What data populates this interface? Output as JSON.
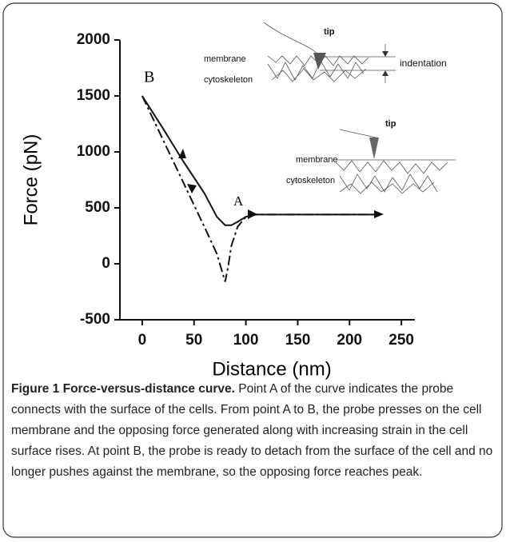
{
  "chart_data": {
    "type": "line",
    "xlabel": "Distance (nm)",
    "ylabel": "Force (pN)",
    "xlim": [
      -21.5,
      263
    ],
    "xticks": [
      0,
      50,
      100,
      150,
      200,
      250
    ],
    "ylim": [
      -500,
      2000
    ],
    "yticks": [
      -500,
      0,
      500,
      1000,
      1500,
      2000
    ],
    "series": [
      {
        "color": "#111111",
        "dashed": false,
        "x": [
          0,
          20,
          40,
          60,
          72,
          80,
          86,
          92,
          100,
          110,
          230
        ],
        "values": [
          1500,
          1210,
          910,
          630,
          420,
          345,
          345,
          375,
          420,
          440,
          440
        ]
      },
      {
        "color": "#111111",
        "dashed": true,
        "x": [
          0,
          20,
          40,
          60,
          72,
          80,
          83,
          86,
          92,
          100,
          110,
          230
        ],
        "values": [
          1500,
          1110,
          720,
          330,
          90,
          -160,
          -20,
          160,
          330,
          420,
          440,
          440
        ]
      }
    ],
    "annotations": [
      "B",
      "A",
      "tip",
      "membrane",
      "cytoskeleton",
      "indentation",
      "tip",
      "membrane",
      "cytoskeleton"
    ]
  },
  "figure_caption": {
    "title": "Figure 1 Force-versus-distance curve.",
    "text": "Point A of the curve indicates the probe connects with the surface of the cells. From point A to B, the probe presses on the cell membrane and the opposing force generated along with increasing strain in the cell surface rises. At point B, the probe is ready to detach from the surface of the cell and no longer pushes against the membrane, so the opposing force reaches peak."
  }
}
